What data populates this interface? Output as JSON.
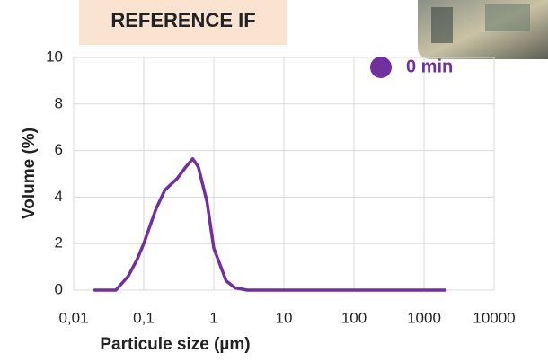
{
  "chart_data": {
    "type": "line",
    "title": "REFERENCE IF",
    "x_label": "Particule size (µm)",
    "y_label": "Volume (%)",
    "xscale": "log",
    "grid": true,
    "xlim": [
      0.01,
      10000
    ],
    "xticks": [
      {
        "value": 0.01,
        "label": "0,01"
      },
      {
        "value": 0.1,
        "label": "0,1"
      },
      1,
      10,
      100,
      1000,
      10000
    ],
    "ylim": [
      0,
      10
    ],
    "yticks": [
      0,
      2,
      4,
      6,
      8,
      10
    ],
    "legend": "top-right",
    "x": [
      0.02,
      0.03,
      0.04,
      0.06,
      0.08,
      0.1,
      0.15,
      0.2,
      0.3,
      0.4,
      0.5,
      0.6,
      0.8,
      1,
      1.5,
      2,
      3,
      5,
      10,
      100,
      1000,
      2000
    ],
    "series": [
      {
        "name": "0 min",
        "color": "#7030a0",
        "values": [
          0,
          0,
          0,
          0.6,
          1.3,
          2.0,
          3.5,
          4.3,
          4.8,
          5.3,
          5.65,
          5.3,
          3.8,
          1.8,
          0.4,
          0.1,
          0,
          0,
          0,
          0,
          0,
          0
        ]
      }
    ]
  }
}
